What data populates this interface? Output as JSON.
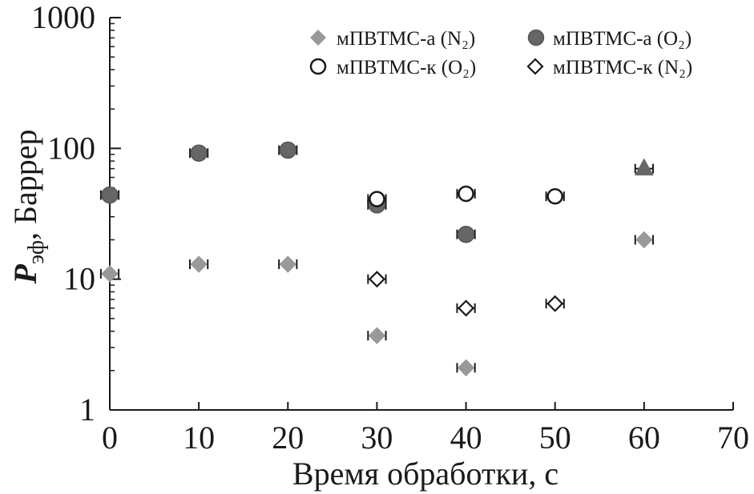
{
  "chart_data": {
    "type": "scatter",
    "xlabel": "Время обработки, с",
    "ylabel_main": "P",
    "ylabel_sub": "эф",
    "ylabel_rest": ", Баррер",
    "xlim": [
      0,
      70
    ],
    "ylim": [
      1,
      1000
    ],
    "yscale": "log",
    "grid": false,
    "legend_position": "top-right",
    "x_ticks": [
      {
        "value": 0,
        "label": "0"
      },
      {
        "value": 10,
        "label": "10"
      },
      {
        "value": 20,
        "label": "20"
      },
      {
        "value": 30,
        "label": "30"
      },
      {
        "value": 40,
        "label": "40"
      },
      {
        "value": 50,
        "label": "50"
      },
      {
        "value": 60,
        "label": "60"
      },
      {
        "value": 70,
        "label": "70"
      }
    ],
    "y_ticks": [
      {
        "value": 1,
        "label": "1"
      },
      {
        "value": 10,
        "label": "10"
      },
      {
        "value": 100,
        "label": "100"
      },
      {
        "value": 1000,
        "label": "1000"
      }
    ],
    "series": [
      {
        "name": "мПВТМС-а (N₂)",
        "marker": "diamond",
        "filled": true,
        "color": "#999999",
        "points": [
          {
            "x": 0,
            "y": 11
          },
          {
            "x": 10,
            "y": 13
          },
          {
            "x": 20,
            "y": 13
          },
          {
            "x": 30,
            "y": 3.7
          },
          {
            "x": 40,
            "y": 2.1
          },
          {
            "x": 60,
            "y": 20
          }
        ]
      },
      {
        "name": "мПВТМС-а (O₂)",
        "marker": "circle",
        "filled": true,
        "color": "#666666",
        "points": [
          {
            "x": 0,
            "y": 44
          },
          {
            "x": 10,
            "y": 92
          },
          {
            "x": 20,
            "y": 97
          },
          {
            "x": 30,
            "y": 37
          },
          {
            "x": 40,
            "y": 22
          }
        ]
      },
      {
        "name": "мПВТМС-к (O₂)",
        "marker": "circle",
        "filled": false,
        "color": "#1a1a1a",
        "points": [
          {
            "x": 30,
            "y": 41
          },
          {
            "x": 40,
            "y": 45
          },
          {
            "x": 50,
            "y": 43
          }
        ]
      },
      {
        "name": "мПВТМС-к (N₂)",
        "marker": "diamond",
        "filled": false,
        "color": "#1a1a1a",
        "points": [
          {
            "x": 30,
            "y": 10
          },
          {
            "x": 40,
            "y": 6
          },
          {
            "x": 50,
            "y": 6.5
          }
        ]
      }
    ],
    "extra_points": [
      {
        "x": 60,
        "y": 70,
        "marker": "triangle",
        "filled": true,
        "color": "#666666"
      }
    ],
    "error_bars": "horizontal",
    "x_error": 1
  }
}
